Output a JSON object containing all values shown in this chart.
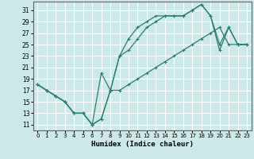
{
  "xlabel": "Humidex (Indice chaleur)",
  "xlim": [
    -0.5,
    23.5
  ],
  "ylim": [
    10,
    32.5
  ],
  "xticks": [
    0,
    1,
    2,
    3,
    4,
    5,
    6,
    7,
    8,
    9,
    10,
    11,
    12,
    13,
    14,
    15,
    16,
    17,
    18,
    19,
    20,
    21,
    22,
    23
  ],
  "yticks": [
    11,
    13,
    15,
    17,
    19,
    21,
    23,
    25,
    27,
    29,
    31
  ],
  "bg_color": "#cce8e8",
  "grid_color": "#ffffff",
  "line_color": "#2e7d6e",
  "line1_x": [
    0,
    1,
    2,
    3,
    4,
    5,
    6,
    7,
    8,
    9,
    10,
    11,
    12,
    13,
    14,
    15,
    16,
    17,
    18,
    19,
    20,
    21,
    22,
    23
  ],
  "line1_y": [
    18,
    17,
    16,
    15,
    13,
    13,
    11,
    12,
    17,
    23,
    26,
    28,
    29,
    30,
    30,
    30,
    30,
    31,
    32,
    30,
    25,
    28,
    25,
    25
  ],
  "line2_x": [
    0,
    1,
    2,
    3,
    4,
    5,
    6,
    7,
    8,
    9,
    10,
    11,
    12,
    13,
    14,
    15,
    16,
    17,
    18,
    19,
    20,
    21,
    22,
    23
  ],
  "line2_y": [
    18,
    17,
    16,
    15,
    13,
    13,
    11,
    20,
    17,
    23,
    24,
    26,
    28,
    29,
    30,
    30,
    30,
    31,
    32,
    30,
    24,
    28,
    25,
    25
  ],
  "line3_x": [
    0,
    1,
    2,
    3,
    4,
    5,
    6,
    7,
    8,
    9,
    10,
    11,
    12,
    13,
    14,
    15,
    16,
    17,
    18,
    19,
    20,
    21,
    22,
    23
  ],
  "line3_y": [
    18,
    17,
    16,
    15,
    13,
    13,
    11,
    12,
    17,
    17,
    18,
    19,
    20,
    21,
    22,
    23,
    24,
    25,
    26,
    27,
    28,
    25,
    25,
    25
  ]
}
